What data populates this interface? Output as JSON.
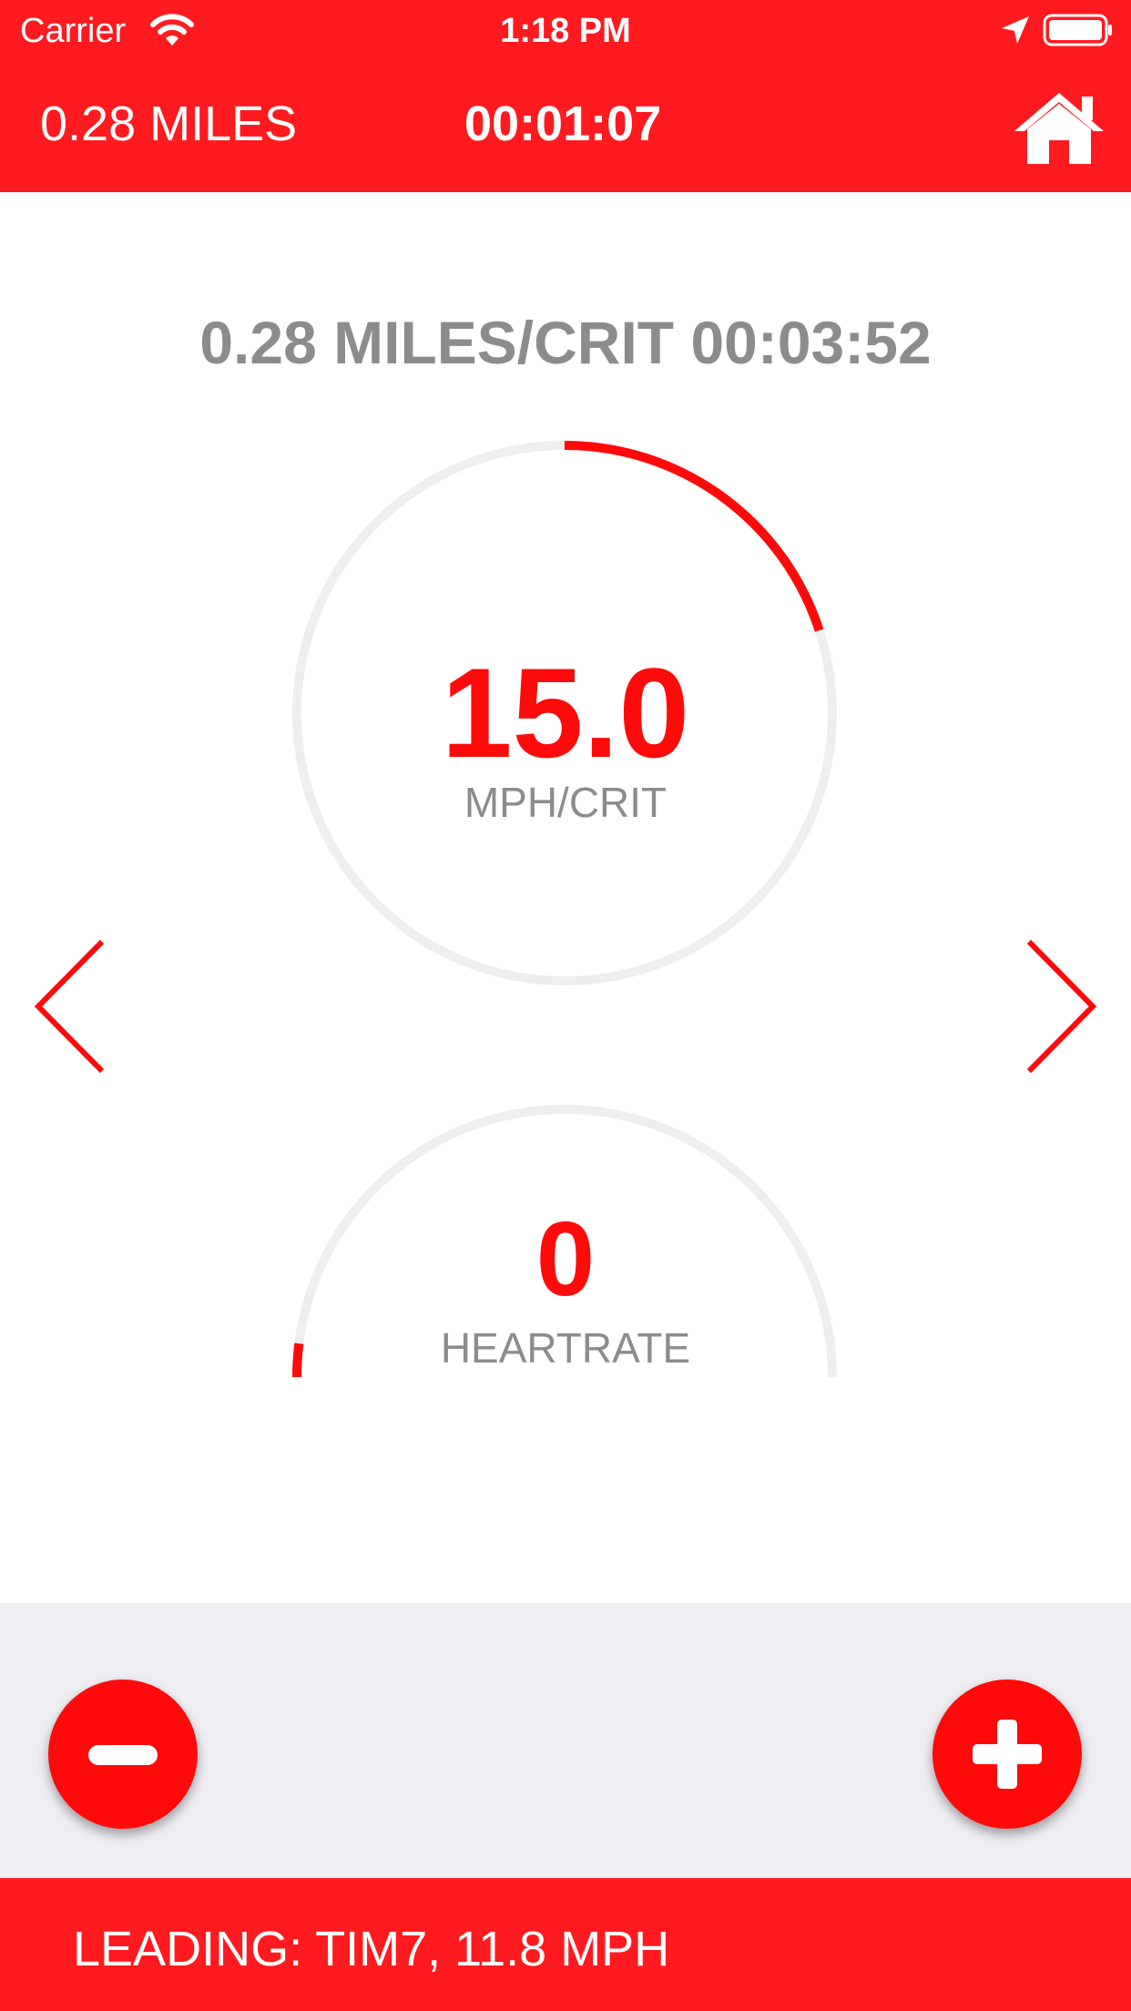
{
  "status_bar": {
    "carrier": "Carrier",
    "time": "1:18 PM",
    "icons": [
      "wifi-icon",
      "location-arrow-icon",
      "battery-icon"
    ]
  },
  "header": {
    "distance": "0.28 MILES",
    "elapsed": "00:01:07",
    "home_icon": "home-icon"
  },
  "summary": "0.28 MILES/CRIT 00:03:52",
  "speed_gauge": {
    "value": "15.0",
    "unit": "MPH/CRIT",
    "progress_fraction": 0.2
  },
  "heartrate_gauge": {
    "value": "0",
    "unit": "HEARTRATE",
    "progress_fraction": 0.04
  },
  "navigation": {
    "prev_icon": "chevron-left-icon",
    "next_icon": "chevron-right-icon"
  },
  "controls": {
    "minus_icon": "minus-icon",
    "plus_icon": "plus-icon"
  },
  "footer": {
    "leading": "LEADING: TIM7, 11.8 MPH"
  },
  "colors": {
    "bar_red": "#ff1a1f",
    "accent_red": "#ff0a0a",
    "track_gray": "#eeeeee",
    "label_gray": "#8c8c8c",
    "controls_bg": "#eeeef3"
  }
}
